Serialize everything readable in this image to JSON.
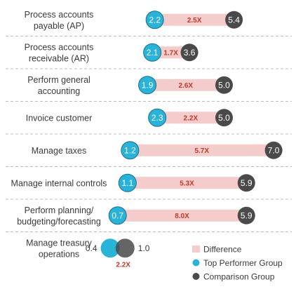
{
  "colors": {
    "difference": "#f4cccc",
    "top_performer": "#29b3d9",
    "comparison": "#4a4a4a",
    "ratio_text": "#c0392b",
    "separator": "#bdbdbd"
  },
  "chart_data": {
    "type": "dumbbell",
    "title": "",
    "xlabel": "",
    "ylabel": "",
    "grid": false,
    "legend_position": "bottom-right",
    "series": [
      {
        "name": "Top Performer Group",
        "key": "top"
      },
      {
        "name": "Comparison Group",
        "key": "comparison"
      }
    ],
    "difference_label": "Difference",
    "categories": [
      {
        "lines": [
          "Process accounts",
          "payable (AP)"
        ],
        "top": 2.2,
        "comparison": 5.4,
        "top_label": "2.2",
        "comparison_label": "5.4",
        "ratio": "2.5X"
      },
      {
        "lines": [
          "Process accounts",
          "receivable (AR)"
        ],
        "top": 2.1,
        "comparison": 3.6,
        "top_label": "2.1",
        "comparison_label": "3.6",
        "ratio": "1.7X"
      },
      {
        "lines": [
          "Perform general",
          "accounting"
        ],
        "top": 1.9,
        "comparison": 5.0,
        "top_label": "1.9",
        "comparison_label": "5.0",
        "ratio": "2.6X"
      },
      {
        "lines": [
          "Invoice customer"
        ],
        "top": 2.3,
        "comparison": 5.0,
        "top_label": "2.3",
        "comparison_label": "5.0",
        "ratio": "2.2X"
      },
      {
        "lines": [
          "Manage taxes"
        ],
        "top": 1.2,
        "comparison": 7.0,
        "top_label": "1.2",
        "comparison_label": "7.0",
        "ratio": "5.7X"
      },
      {
        "lines": [
          "Manage internal controls"
        ],
        "top": 1.1,
        "comparison": 5.9,
        "top_label": "1.1",
        "comparison_label": "5.9",
        "ratio": "5.3X"
      },
      {
        "lines": [
          "Perform planning/",
          "budgeting/forecasting"
        ],
        "top": 0.7,
        "comparison": 5.9,
        "top_label": "0.7",
        "comparison_label": "5.9",
        "ratio": "8.0X"
      },
      {
        "lines": [
          "Manage treasury",
          "operations"
        ],
        "top": 0.4,
        "comparison": 1.0,
        "top_label": "0.4",
        "comparison_label": "1.0",
        "ratio": "2.2X"
      }
    ]
  }
}
